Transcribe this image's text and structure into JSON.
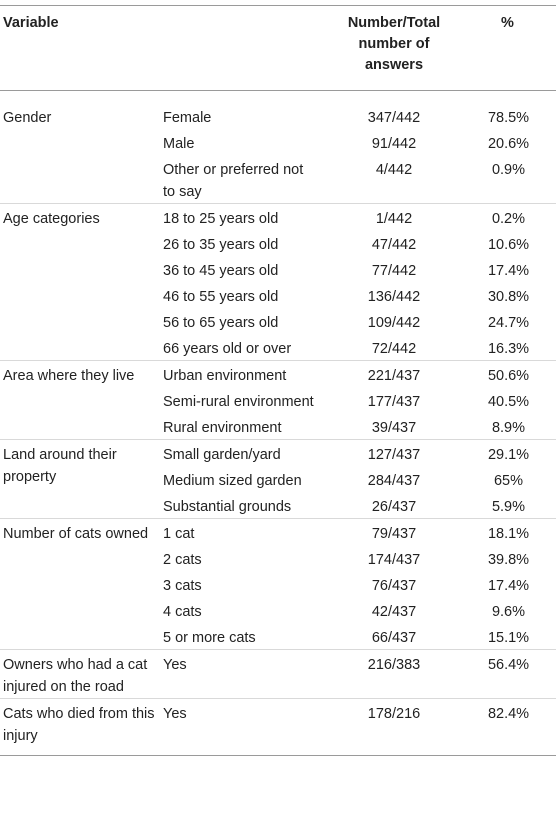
{
  "header": {
    "variable": "Variable",
    "number": "Number/Total number of answers",
    "percent": "%"
  },
  "groups": [
    {
      "variable": "Gender",
      "rows": [
        {
          "category": "Female",
          "number": "347/442",
          "percent": "78.5%"
        },
        {
          "category": "Male",
          "number": "91/442",
          "percent": "20.6%"
        },
        {
          "category": "Other or preferred not to say",
          "number": "4/442",
          "percent": "0.9%"
        }
      ]
    },
    {
      "variable": "Age categories",
      "rows": [
        {
          "category": "18 to 25 years old",
          "number": "1/442",
          "percent": "0.2%"
        },
        {
          "category": "26 to 35 years old",
          "number": "47/442",
          "percent": "10.6%"
        },
        {
          "category": "36 to 45 years old",
          "number": "77/442",
          "percent": "17.4%"
        },
        {
          "category": "46 to 55 years old",
          "number": "136/442",
          "percent": "30.8%"
        },
        {
          "category": "56 to 65 years old",
          "number": "109/442",
          "percent": "24.7%"
        },
        {
          "category": "66 years old or over",
          "number": "72/442",
          "percent": "16.3%"
        }
      ]
    },
    {
      "variable": "Area where they live",
      "rows": [
        {
          "category": "Urban environment",
          "number": "221/437",
          "percent": "50.6%"
        },
        {
          "category": "Semi-rural environment",
          "number": "177/437",
          "percent": "40.5%"
        },
        {
          "category": "Rural environment",
          "number": "39/437",
          "percent": "8.9%"
        }
      ]
    },
    {
      "variable": "Land around their property",
      "rows": [
        {
          "category": "Small garden/yard",
          "number": "127/437",
          "percent": "29.1%"
        },
        {
          "category": "Medium sized garden",
          "number": "284/437",
          "percent": "65%"
        },
        {
          "category": "Substantial grounds",
          "number": "26/437",
          "percent": "5.9%"
        }
      ]
    },
    {
      "variable": "Number of cats owned",
      "rows": [
        {
          "category": "1 cat",
          "number": "79/437",
          "percent": "18.1%"
        },
        {
          "category": "2 cats",
          "number": "174/437",
          "percent": "39.8%"
        },
        {
          "category": "3 cats",
          "number": "76/437",
          "percent": "17.4%"
        },
        {
          "category": "4 cats",
          "number": "42/437",
          "percent": "9.6%"
        },
        {
          "category": "5 or more cats",
          "number": "66/437",
          "percent": "15.1%"
        }
      ]
    },
    {
      "variable": "Owners who had a cat injured on the road",
      "rows": [
        {
          "category": "Yes",
          "number": "216/383",
          "percent": "56.4%"
        }
      ]
    },
    {
      "variable": "Cats who died from this injury",
      "rows": [
        {
          "category": "Yes",
          "number": "178/216",
          "percent": "82.4%"
        }
      ]
    }
  ]
}
